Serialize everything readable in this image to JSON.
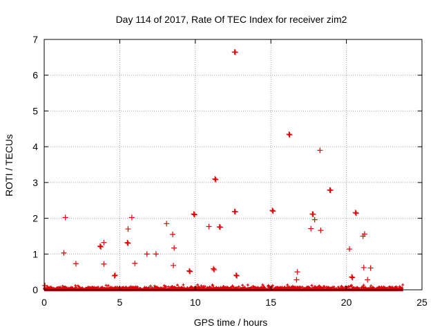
{
  "chart_data": {
    "type": "scatter",
    "title": "Day 114 of 2017, Rate Of TEC Index for receiver zim2",
    "xlabel": "GPS time / hours",
    "ylabel": "ROTI / TECUs",
    "xlim": [
      0,
      25
    ],
    "ylim": [
      0,
      7
    ],
    "xticks": [
      "0",
      "5",
      "10",
      "15",
      "20",
      "25"
    ],
    "yticks": [
      "0",
      "1",
      "2",
      "3",
      "4",
      "5",
      "6",
      "7"
    ],
    "grid": true,
    "point_color": "#e00000",
    "baseline_band": {
      "x_start": 0.0,
      "x_end": 23.75,
      "y_min": 0.0,
      "y_max": 0.1
    },
    "series": [
      {
        "name": "ROTI",
        "points": [
          [
            0.05,
            0.12
          ],
          [
            1.3,
            1.03
          ],
          [
            1.4,
            2.02
          ],
          [
            2.1,
            0.73
          ],
          [
            3.7,
            1.22
          ],
          [
            3.75,
            1.2
          ],
          [
            3.95,
            1.32
          ],
          [
            3.95,
            0.72
          ],
          [
            4.7,
            0.41
          ],
          [
            4.65,
            0.39
          ],
          [
            5.5,
            1.32
          ],
          [
            5.55,
            1.3
          ],
          [
            5.55,
            1.7
          ],
          [
            5.8,
            2.02
          ],
          [
            6.0,
            0.74
          ],
          [
            6.8,
            1.0
          ],
          [
            7.4,
            1.0
          ],
          [
            8.1,
            1.85
          ],
          [
            8.5,
            1.55
          ],
          [
            8.55,
            0.68
          ],
          [
            8.6,
            1.17
          ],
          [
            9.6,
            0.53
          ],
          [
            9.65,
            0.51
          ],
          [
            9.9,
            2.12
          ],
          [
            9.95,
            2.1
          ],
          [
            10.9,
            1.77
          ],
          [
            11.2,
            0.59
          ],
          [
            11.25,
            0.56
          ],
          [
            11.3,
            3.1
          ],
          [
            11.35,
            3.08
          ],
          [
            11.6,
            1.76
          ],
          [
            11.65,
            1.75
          ],
          [
            12.6,
            6.65
          ],
          [
            12.65,
            6.64
          ],
          [
            12.6,
            2.19
          ],
          [
            12.65,
            2.18
          ],
          [
            12.7,
            0.41
          ],
          [
            12.75,
            0.39
          ],
          [
            15.1,
            2.22
          ],
          [
            15.15,
            2.2
          ],
          [
            16.2,
            4.35
          ],
          [
            16.25,
            4.33
          ],
          [
            16.7,
            0.28
          ],
          [
            16.75,
            0.5
          ],
          [
            17.65,
            1.71
          ],
          [
            17.75,
            2.12
          ],
          [
            17.8,
            2.11
          ],
          [
            17.9,
            1.96
          ],
          [
            18.25,
            3.9
          ],
          [
            18.3,
            1.66
          ],
          [
            18.9,
            2.79
          ],
          [
            18.95,
            2.78
          ],
          [
            20.2,
            1.14
          ],
          [
            20.35,
            0.36
          ],
          [
            20.4,
            0.34
          ],
          [
            20.6,
            2.16
          ],
          [
            20.65,
            2.14
          ],
          [
            21.1,
            1.5
          ],
          [
            21.15,
            0.62
          ],
          [
            21.2,
            1.56
          ],
          [
            21.4,
            0.28
          ],
          [
            21.6,
            0.61
          ]
        ]
      }
    ]
  }
}
